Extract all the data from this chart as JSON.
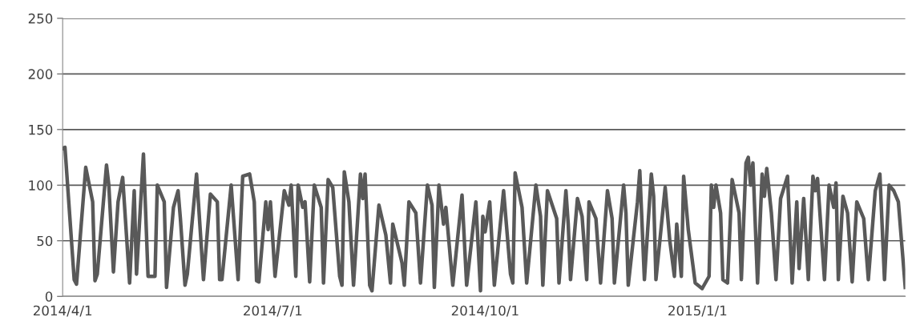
{
  "chart_data": {
    "type": "line",
    "xlim": [
      "2014-04-01",
      "2015-04-01"
    ],
    "xticks": [
      {
        "value": "2014-04-01",
        "label": "2014/4/1"
      },
      {
        "value": "2014-07-01",
        "label": "2014/7/1"
      },
      {
        "value": "2014-10-01",
        "label": "2014/10/1"
      },
      {
        "value": "2015-01-01",
        "label": "2015/1/1"
      }
    ],
    "ylim": [
      0,
      250
    ],
    "yticks": [
      0,
      50,
      100,
      150,
      200,
      250
    ],
    "grid": "y",
    "legend": false,
    "marker": "none",
    "line_style": "solid",
    "series": [
      {
        "color": "#595959",
        "x": [
          "2014-04-01",
          "2014-04-02",
          "2014-04-06",
          "2014-04-07",
          "2014-04-11",
          "2014-04-14",
          "2014-04-15",
          "2014-04-16",
          "2014-04-20",
          "2014-04-21",
          "2014-04-23",
          "2014-04-25",
          "2014-04-27",
          "2014-04-30",
          "2014-05-02",
          "2014-05-03",
          "2014-05-06",
          "2014-05-08",
          "2014-05-11",
          "2014-05-12",
          "2014-05-15",
          "2014-05-16",
          "2014-05-19",
          "2014-05-21",
          "2014-05-22",
          "2014-05-24",
          "2014-05-25",
          "2014-05-29",
          "2014-06-01",
          "2014-06-04",
          "2014-06-07",
          "2014-06-08",
          "2014-06-09",
          "2014-06-13",
          "2014-06-16",
          "2014-06-18",
          "2014-06-21",
          "2014-06-23",
          "2014-06-24",
          "2014-06-25",
          "2014-06-28",
          "2014-06-29",
          "2014-06-30",
          "2014-07-02",
          "2014-07-06",
          "2014-07-08",
          "2014-07-09",
          "2014-07-11",
          "2014-07-12",
          "2014-07-14",
          "2014-07-15",
          "2014-07-17",
          "2014-07-19",
          "2014-07-22",
          "2014-07-23",
          "2014-07-25",
          "2014-07-27",
          "2014-07-30",
          "2014-07-31",
          "2014-08-01",
          "2014-08-03",
          "2014-08-05",
          "2014-08-08",
          "2014-08-09",
          "2014-08-10",
          "2014-08-12",
          "2014-08-13",
          "2014-08-16",
          "2014-08-19",
          "2014-08-21",
          "2014-08-22",
          "2014-08-26",
          "2014-08-27",
          "2014-08-29",
          "2014-09-01",
          "2014-09-03",
          "2014-09-06",
          "2014-09-08",
          "2014-09-09",
          "2014-09-11",
          "2014-09-13",
          "2014-09-14",
          "2014-09-17",
          "2014-09-21",
          "2014-09-23",
          "2014-09-27",
          "2014-09-29",
          "2014-09-30",
          "2014-10-01",
          "2014-10-03",
          "2014-10-05",
          "2014-10-09",
          "2014-10-12",
          "2014-10-13",
          "2014-10-14",
          "2014-10-17",
          "2014-10-19",
          "2014-10-23",
          "2014-10-25",
          "2014-10-26",
          "2014-10-28",
          "2014-11-01",
          "2014-11-02",
          "2014-11-05",
          "2014-11-06",
          "2014-11-07",
          "2014-11-10",
          "2014-11-12",
          "2014-11-14",
          "2014-11-15",
          "2014-11-18",
          "2014-11-20",
          "2014-11-23",
          "2014-11-25",
          "2014-11-26",
          "2014-11-30",
          "2014-12-01",
          "2014-12-02",
          "2014-12-06",
          "2014-12-07",
          "2014-12-09",
          "2014-12-12",
          "2014-12-13",
          "2014-12-14",
          "2014-12-18",
          "2014-12-20",
          "2014-12-22",
          "2014-12-23",
          "2014-12-25",
          "2014-12-26",
          "2014-12-28",
          "2014-12-31",
          "2015-01-03",
          "2015-01-06",
          "2015-01-07",
          "2015-01-08",
          "2015-01-09",
          "2015-01-11",
          "2015-01-12",
          "2015-01-14",
          "2015-01-16",
          "2015-01-19",
          "2015-01-20",
          "2015-01-22",
          "2015-01-23",
          "2015-01-24",
          "2015-01-25",
          "2015-01-27",
          "2015-01-29",
          "2015-01-30",
          "2015-01-31",
          "2015-02-02",
          "2015-02-04",
          "2015-02-06",
          "2015-02-09",
          "2015-02-11",
          "2015-02-13",
          "2015-02-14",
          "2015-02-16",
          "2015-02-18",
          "2015-02-20",
          "2015-02-21",
          "2015-02-22",
          "2015-02-25",
          "2015-02-27",
          "2015-03-01",
          "2015-03-02",
          "2015-03-03",
          "2015-03-05",
          "2015-03-07",
          "2015-03-09",
          "2015-03-11",
          "2015-03-14",
          "2015-03-16",
          "2015-03-19",
          "2015-03-21",
          "2015-03-23",
          "2015-03-25",
          "2015-03-27",
          "2015-03-29",
          "2015-04-01"
        ],
        "values": [
          133,
          134,
          15,
          11,
          116,
          85,
          14,
          20,
          118,
          100,
          22,
          85,
          107,
          12,
          95,
          20,
          128,
          18,
          18,
          100,
          85,
          8,
          80,
          95,
          70,
          10,
          20,
          110,
          15,
          92,
          85,
          15,
          15,
          100,
          15,
          108,
          110,
          85,
          14,
          13,
          85,
          60,
          85,
          18,
          95,
          82,
          100,
          18,
          100,
          80,
          85,
          13,
          100,
          80,
          12,
          105,
          98,
          18,
          10,
          112,
          85,
          10,
          110,
          88,
          110,
          10,
          5,
          82,
          55,
          12,
          65,
          30,
          10,
          85,
          75,
          12,
          100,
          82,
          8,
          100,
          65,
          80,
          10,
          91,
          10,
          85,
          5,
          72,
          58,
          85,
          10,
          95,
          20,
          12,
          111,
          80,
          12,
          100,
          72,
          10,
          95,
          70,
          12,
          95,
          65,
          15,
          88,
          72,
          15,
          85,
          70,
          12,
          95,
          70,
          12,
          100,
          75,
          10,
          85,
          113,
          15,
          110,
          90,
          15,
          98,
          50,
          18,
          65,
          18,
          108,
          60,
          12,
          7,
          18,
          100,
          80,
          100,
          75,
          15,
          12,
          105,
          75,
          15,
          120,
          125,
          100,
          120,
          12,
          110,
          90,
          115,
          75,
          15,
          88,
          108,
          12,
          85,
          25,
          88,
          15,
          108,
          95,
          106,
          15,
          100,
          80,
          102,
          15,
          90,
          75,
          13,
          85,
          70,
          15,
          95,
          110,
          15,
          100,
          95,
          85,
          8
        ]
      }
    ]
  }
}
